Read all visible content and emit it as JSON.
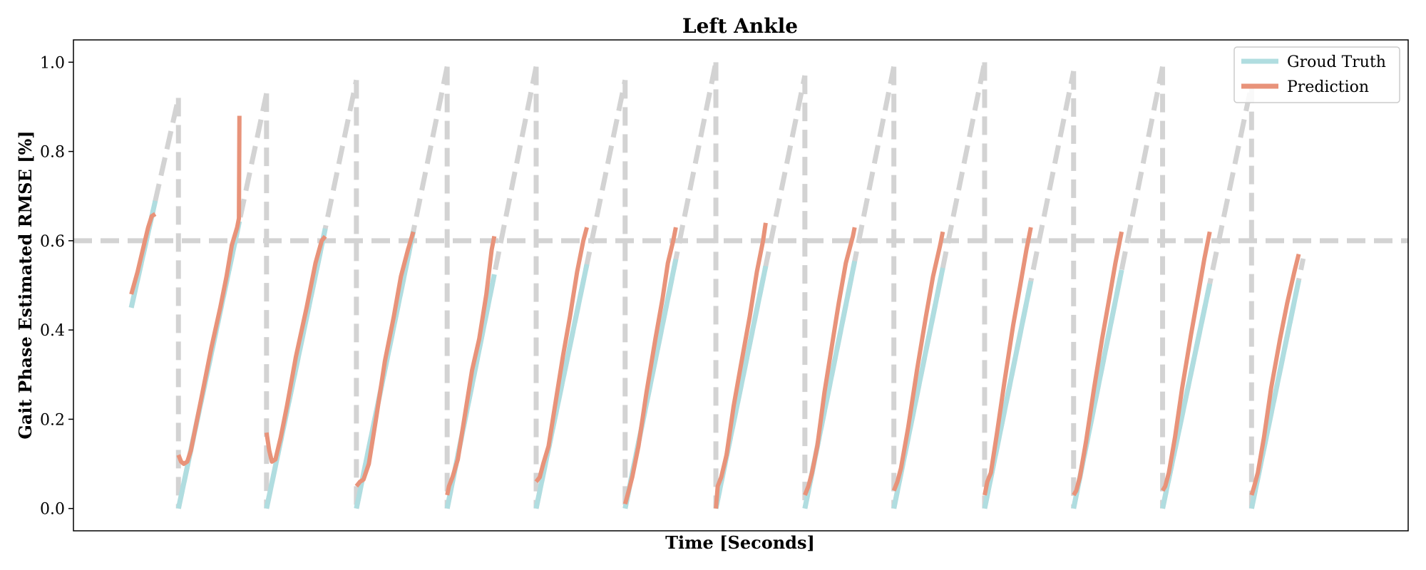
{
  "chart_data": {
    "type": "line",
    "title": "Left Ankle",
    "xlabel": "Time [Seconds]",
    "ylabel": "Gait Phase Estimated RMSE [%]",
    "xlim": [
      0,
      1500
    ],
    "ylim": [
      -0.05,
      1.05
    ],
    "yticks": [
      0.0,
      0.2,
      0.4,
      0.6,
      0.8,
      1.0
    ],
    "ytick_labels": [
      "0.0",
      "0.2",
      "0.4",
      "0.6",
      "0.8",
      "1.0"
    ],
    "grid": false,
    "legend": {
      "position": "top-right",
      "entries": [
        {
          "label": "Groud Truth",
          "color": "#b0dde0"
        },
        {
          "label": "Prediction",
          "color": "#e8937a"
        }
      ]
    },
    "threshold": {
      "y": 0.6,
      "color": "#d3d3d3"
    },
    "colors": {
      "ground_truth": "#b0dde0",
      "prediction": "#e8937a",
      "dashed": "#d3d3d3"
    },
    "cycles": [
      {
        "start": 65,
        "end": 118,
        "gt_start": 0.45,
        "gt_end": 0.92,
        "pred": [
          [
            65,
            0.48
          ],
          [
            72,
            0.53
          ],
          [
            78,
            0.58
          ],
          [
            84,
            0.63
          ],
          [
            88,
            0.655
          ],
          [
            92,
            0.66
          ]
        ]
      },
      {
        "start": 118,
        "end": 217,
        "gt_start": 0.0,
        "gt_end": 0.93,
        "pred": [
          [
            118,
            0.12
          ],
          [
            121,
            0.105
          ],
          [
            124,
            0.1
          ],
          [
            128,
            0.105
          ],
          [
            132,
            0.13
          ],
          [
            137,
            0.18
          ],
          [
            145,
            0.26
          ],
          [
            155,
            0.36
          ],
          [
            165,
            0.45
          ],
          [
            172,
            0.52
          ],
          [
            178,
            0.59
          ],
          [
            184,
            0.63
          ],
          [
            186,
            0.65
          ],
          [
            186.5,
            0.88
          ]
        ]
      },
      {
        "start": 217,
        "end": 318,
        "gt_start": 0.0,
        "gt_end": 0.96,
        "pred": [
          [
            217,
            0.17
          ],
          [
            220,
            0.13
          ],
          [
            223,
            0.105
          ],
          [
            227,
            0.11
          ],
          [
            233,
            0.16
          ],
          [
            240,
            0.23
          ],
          [
            250,
            0.34
          ],
          [
            262,
            0.45
          ],
          [
            272,
            0.55
          ],
          [
            279,
            0.6
          ],
          [
            283,
            0.61
          ]
        ]
      },
      {
        "start": 318,
        "end": 420,
        "gt_start": 0.0,
        "gt_end": 0.99,
        "pred": [
          [
            318,
            0.05
          ],
          [
            322,
            0.06
          ],
          [
            326,
            0.065
          ],
          [
            332,
            0.1
          ],
          [
            340,
            0.2
          ],
          [
            350,
            0.33
          ],
          [
            360,
            0.43
          ],
          [
            368,
            0.52
          ],
          [
            376,
            0.58
          ],
          [
            382,
            0.62
          ]
        ]
      },
      {
        "start": 420,
        "end": 520,
        "gt_start": 0.0,
        "gt_end": 0.99,
        "pred": [
          [
            420,
            0.03
          ],
          [
            422,
            0.05
          ],
          [
            426,
            0.07
          ],
          [
            432,
            0.11
          ],
          [
            440,
            0.21
          ],
          [
            448,
            0.31
          ],
          [
            456,
            0.38
          ],
          [
            464,
            0.48
          ],
          [
            470,
            0.58
          ],
          [
            473,
            0.61
          ]
        ]
      },
      {
        "start": 520,
        "end": 620,
        "gt_start": 0.0,
        "gt_end": 0.96,
        "pred": [
          [
            520,
            0.06
          ],
          [
            524,
            0.07
          ],
          [
            528,
            0.1
          ],
          [
            534,
            0.14
          ],
          [
            542,
            0.24
          ],
          [
            550,
            0.34
          ],
          [
            558,
            0.43
          ],
          [
            566,
            0.53
          ],
          [
            573,
            0.6
          ],
          [
            577,
            0.63
          ]
        ]
      },
      {
        "start": 620,
        "end": 722,
        "gt_start": 0.0,
        "gt_end": 1.0,
        "pred": [
          [
            620,
            0.01
          ],
          [
            624,
            0.04
          ],
          [
            628,
            0.07
          ],
          [
            635,
            0.14
          ],
          [
            644,
            0.26
          ],
          [
            654,
            0.38
          ],
          [
            662,
            0.47
          ],
          [
            668,
            0.55
          ],
          [
            674,
            0.6
          ],
          [
            677,
            0.63
          ]
        ]
      },
      {
        "start": 722,
        "end": 822,
        "gt_start": 0.0,
        "gt_end": 0.97,
        "pred": [
          [
            722,
            0.0
          ],
          [
            724,
            0.05
          ],
          [
            728,
            0.07
          ],
          [
            734,
            0.12
          ],
          [
            742,
            0.23
          ],
          [
            750,
            0.32
          ],
          [
            760,
            0.43
          ],
          [
            768,
            0.53
          ],
          [
            775,
            0.6
          ],
          [
            778,
            0.64
          ]
        ]
      },
      {
        "start": 822,
        "end": 922,
        "gt_start": 0.0,
        "gt_end": 0.99,
        "pred": [
          [
            822,
            0.03
          ],
          [
            826,
            0.05
          ],
          [
            830,
            0.08
          ],
          [
            836,
            0.14
          ],
          [
            844,
            0.26
          ],
          [
            852,
            0.36
          ],
          [
            860,
            0.46
          ],
          [
            868,
            0.55
          ],
          [
            876,
            0.61
          ],
          [
            878,
            0.63
          ]
        ]
      },
      {
        "start": 922,
        "end": 1024,
        "gt_start": 0.0,
        "gt_end": 1.0,
        "pred": [
          [
            922,
            0.04
          ],
          [
            926,
            0.06
          ],
          [
            930,
            0.09
          ],
          [
            938,
            0.18
          ],
          [
            948,
            0.31
          ],
          [
            958,
            0.43
          ],
          [
            966,
            0.52
          ],
          [
            974,
            0.59
          ],
          [
            977,
            0.62
          ]
        ]
      },
      {
        "start": 1024,
        "end": 1124,
        "gt_start": 0.0,
        "gt_end": 0.98,
        "pred": [
          [
            1024,
            0.03
          ],
          [
            1027,
            0.06
          ],
          [
            1031,
            0.08
          ],
          [
            1038,
            0.17
          ],
          [
            1046,
            0.28
          ],
          [
            1056,
            0.41
          ],
          [
            1064,
            0.5
          ],
          [
            1071,
            0.58
          ],
          [
            1076,
            0.63
          ]
        ]
      },
      {
        "start": 1124,
        "end": 1224,
        "gt_start": 0.0,
        "gt_end": 0.99,
        "pred": [
          [
            1124,
            0.03
          ],
          [
            1127,
            0.04
          ],
          [
            1131,
            0.07
          ],
          [
            1138,
            0.15
          ],
          [
            1147,
            0.27
          ],
          [
            1156,
            0.38
          ],
          [
            1164,
            0.47
          ],
          [
            1171,
            0.55
          ],
          [
            1178,
            0.62
          ]
        ]
      },
      {
        "start": 1224,
        "end": 1324,
        "gt_start": 0.0,
        "gt_end": 0.95,
        "pred": [
          [
            1224,
            0.04
          ],
          [
            1227,
            0.05
          ],
          [
            1231,
            0.08
          ],
          [
            1238,
            0.16
          ],
          [
            1246,
            0.27
          ],
          [
            1256,
            0.39
          ],
          [
            1264,
            0.48
          ],
          [
            1271,
            0.56
          ],
          [
            1277,
            0.62
          ]
        ]
      },
      {
        "start": 1324,
        "end": 1382,
        "gt_start": 0.0,
        "gt_end": 0.56,
        "pred": [
          [
            1324,
            0.03
          ],
          [
            1327,
            0.05
          ],
          [
            1331,
            0.08
          ],
          [
            1338,
            0.16
          ],
          [
            1346,
            0.27
          ],
          [
            1356,
            0.38
          ],
          [
            1364,
            0.46
          ],
          [
            1372,
            0.53
          ],
          [
            1377,
            0.57
          ]
        ]
      }
    ]
  }
}
